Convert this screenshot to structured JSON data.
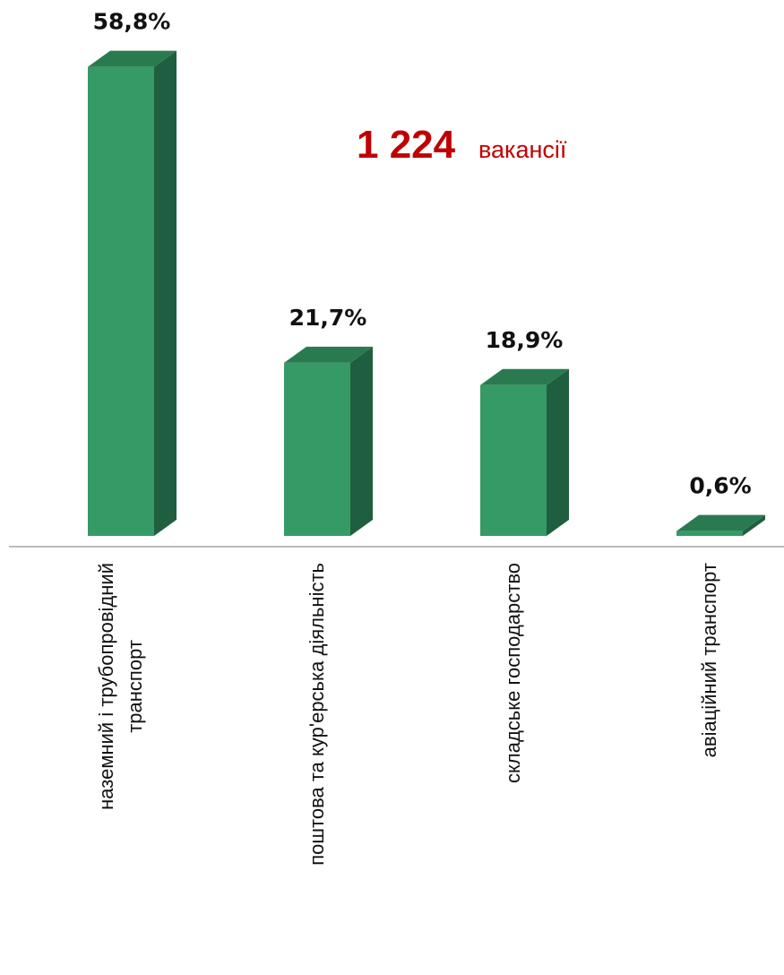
{
  "chart_data": {
    "type": "bar3d",
    "categories": [
      "наземний і трубопровідний\nтранспорт",
      "поштова та кур'ерська діяльність",
      "складське господарство",
      "авіаційний транспорт"
    ],
    "values": [
      58.8,
      21.7,
      18.9,
      0.6
    ],
    "value_labels": [
      "58,8%",
      "21,7%",
      "18,9%",
      "0,6%"
    ],
    "color": "#359a66",
    "ylim": [
      0,
      60
    ],
    "annotation": {
      "number": "1 224",
      "text": "вакансії"
    }
  }
}
